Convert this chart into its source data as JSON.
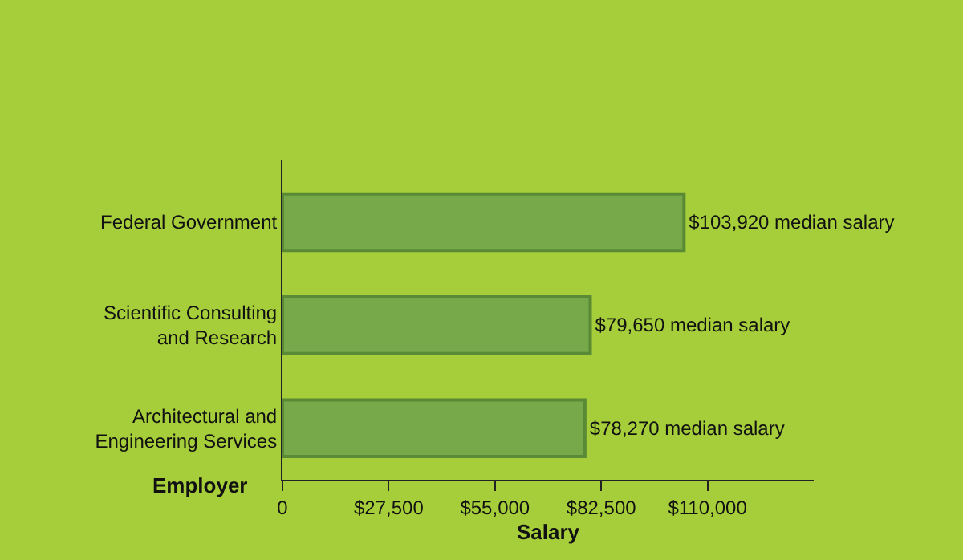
{
  "chart_data": {
    "type": "bar",
    "orientation": "horizontal",
    "categories": [
      "Federal Government",
      "Scientific Consulting\nand Research",
      "Architectural and\nEngineering Services"
    ],
    "values": [
      103920,
      79650,
      78270
    ],
    "value_labels": [
      "$103,920 median salary",
      "$79,650 median salary",
      "$78,270 median salary"
    ],
    "color": "#77a84a",
    "xlabel": "Salary",
    "ylabel": "Employer",
    "xlim": [
      0,
      137500
    ],
    "xticks": [
      0,
      {
        "value": 27500,
        "label": "$27,500"
      },
      {
        "value": 55000,
        "label": "$55,000"
      },
      {
        "value": 82500,
        "label": "$82,500"
      },
      {
        "value": 110000,
        "label": "$110,000"
      }
    ],
    "grid": false,
    "legend": false
  }
}
